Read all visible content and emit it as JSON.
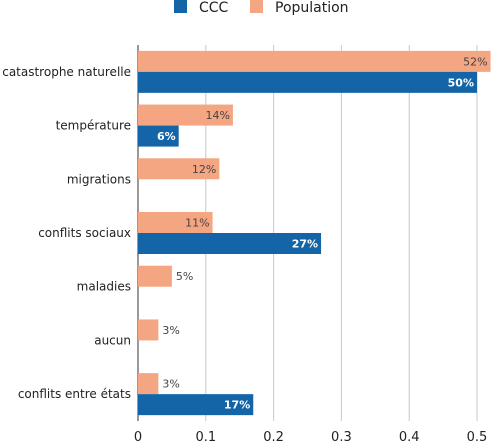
{
  "chart_data": {
    "type": "bar",
    "orientation": "horizontal",
    "categories": [
      "catastrophe naturelle",
      "température",
      "migrations",
      "conflits sociaux",
      "maladies",
      "aucun",
      "conflits entre états"
    ],
    "series": [
      {
        "name": "CCC",
        "color": "#1464a8",
        "values": [
          0.5,
          0.06,
          null,
          0.27,
          null,
          null,
          0.17
        ],
        "labels": [
          "50%",
          "6%",
          "",
          "27%",
          "",
          "",
          "17%"
        ]
      },
      {
        "name": "Population",
        "color": "#f4a582",
        "values": [
          0.52,
          0.14,
          0.12,
          0.11,
          0.05,
          0.03,
          0.03
        ],
        "labels": [
          "52%",
          "14%",
          "12%",
          "11%",
          "5%",
          "3%",
          "3%"
        ]
      }
    ],
    "xlim": [
      0,
      0.5
    ],
    "xticks": [
      "0",
      "0.1",
      "0.2",
      "0.3",
      "0.4",
      "0.5"
    ],
    "xtick_values": [
      0,
      0.1,
      0.2,
      0.3,
      0.4,
      0.5
    ],
    "grid": true,
    "legend": "top-center",
    "title": "",
    "xlabel": "",
    "ylabel": ""
  }
}
